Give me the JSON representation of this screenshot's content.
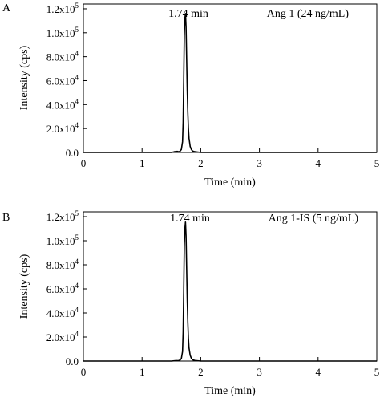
{
  "chart_data": [
    {
      "panel": "A",
      "type": "line",
      "xlabel": "Time (min)",
      "ylabel": "Intensity (cps)",
      "xlim": [
        0,
        5
      ],
      "ylim": [
        0,
        124000
      ],
      "x_ticks": [
        0,
        1,
        2,
        3,
        4,
        5
      ],
      "x_tick_labels": [
        "0",
        "1",
        "2",
        "3",
        "4",
        "5"
      ],
      "y_ticks": [
        0,
        20000,
        40000,
        60000,
        80000,
        100000,
        120000
      ],
      "y_tick_labels": [
        {
          "mantissa": "0.0",
          "exp": ""
        },
        {
          "mantissa": "2.0x10",
          "exp": "4"
        },
        {
          "mantissa": "4.0x10",
          "exp": "4"
        },
        {
          "mantissa": "6.0x10",
          "exp": "4"
        },
        {
          "mantissa": "8.0x10",
          "exp": "4"
        },
        {
          "mantissa": "1.0x10",
          "exp": "5"
        },
        {
          "mantissa": "1.2x10",
          "exp": "5"
        }
      ],
      "legend": "Ang 1 (24 ng/mL)",
      "legend_position": "top-right",
      "peak_label": "1.74 min",
      "series": [
        {
          "x": [
            0,
            1.0,
            1.5,
            1.55,
            1.6,
            1.63,
            1.65,
            1.67,
            1.69,
            1.7,
            1.71,
            1.72,
            1.73,
            1.74,
            1.75,
            1.76,
            1.77,
            1.78,
            1.79,
            1.8,
            1.82,
            1.84,
            1.86,
            1.9,
            1.95,
            2.0,
            2.5,
            5.0
          ],
          "y": [
            0,
            0,
            0,
            600,
            900,
            500,
            1200,
            2500,
            9000,
            25000,
            60000,
            98000,
            112000,
            116000,
            105000,
            78000,
            52000,
            33000,
            20000,
            12000,
            5000,
            2500,
            1200,
            600,
            300,
            0,
            0,
            0
          ]
        }
      ]
    },
    {
      "panel": "B",
      "type": "line",
      "xlabel": "Time (min)",
      "ylabel": "Intensity (cps)",
      "xlim": [
        0,
        5
      ],
      "ylim": [
        0,
        124000
      ],
      "x_ticks": [
        0,
        1,
        2,
        3,
        4,
        5
      ],
      "x_tick_labels": [
        "0",
        "1",
        "2",
        "3",
        "4",
        "5"
      ],
      "y_ticks": [
        0,
        20000,
        40000,
        60000,
        80000,
        100000,
        120000
      ],
      "y_tick_labels": [
        {
          "mantissa": "0.0",
          "exp": ""
        },
        {
          "mantissa": "2.0x10",
          "exp": "4"
        },
        {
          "mantissa": "4.0x10",
          "exp": "4"
        },
        {
          "mantissa": "6.0x10",
          "exp": "4"
        },
        {
          "mantissa": "8.0x10",
          "exp": "4"
        },
        {
          "mantissa": "1.0x10",
          "exp": "5"
        },
        {
          "mantissa": "1.2x10",
          "exp": "5"
        }
      ],
      "legend": "Ang 1-IS (5 ng/mL)",
      "legend_position": "top-right",
      "peak_label": "1.74 min",
      "series": [
        {
          "x": [
            0,
            1.0,
            1.5,
            1.58,
            1.62,
            1.65,
            1.67,
            1.69,
            1.7,
            1.71,
            1.72,
            1.73,
            1.74,
            1.75,
            1.76,
            1.77,
            1.78,
            1.79,
            1.8,
            1.82,
            1.84,
            1.86,
            1.9,
            1.95,
            2.0,
            2.5,
            5.0
          ],
          "y": [
            0,
            0,
            0,
            400,
            300,
            900,
            2200,
            8000,
            24000,
            58000,
            96000,
            110000,
            115500,
            104000,
            77000,
            51000,
            32000,
            19000,
            11000,
            4800,
            2300,
            1100,
            500,
            250,
            0,
            0,
            0
          ]
        }
      ]
    }
  ]
}
